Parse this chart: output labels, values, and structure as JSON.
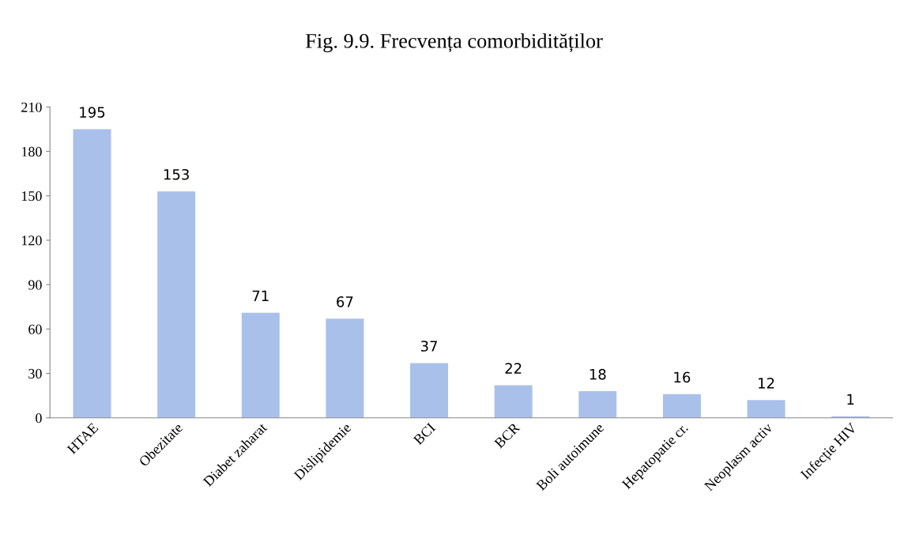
{
  "chart_data": {
    "type": "bar",
    "title": "Fig. 9.9. Frecvența comorbidităților",
    "categories": [
      "HTAE",
      "Obezitate",
      "Diabet zaharat",
      "Dislipidemie",
      "BCI",
      "BCR",
      "Boli autoimune",
      "Hepatopatie cr.",
      "Neoplasm activ",
      "Infecție HIV"
    ],
    "values": [
      195,
      153,
      71,
      67,
      37,
      22,
      18,
      16,
      12,
      1
    ],
    "color": "#a9c0ea",
    "ylim": [
      0,
      210
    ],
    "yticks": [
      0,
      30,
      60,
      90,
      120,
      150,
      180,
      210
    ],
    "data_labels": true,
    "grid": false,
    "legend": false
  }
}
